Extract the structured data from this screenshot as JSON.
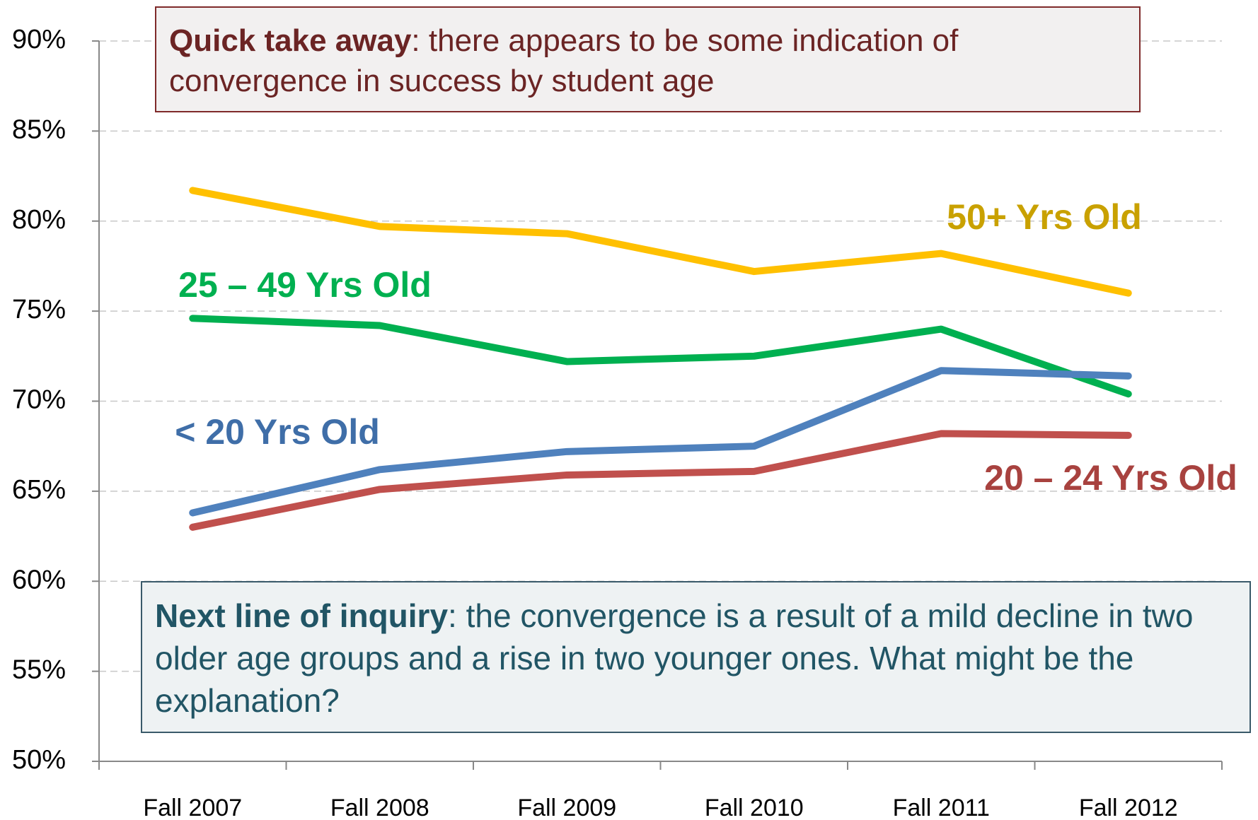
{
  "chart_data": {
    "type": "line",
    "categories": [
      "Fall 2007",
      "Fall 2008",
      "Fall 2009",
      "Fall 2010",
      "Fall 2011",
      "Fall 2012"
    ],
    "series": [
      {
        "name": "50+ Yrs Old",
        "color": "#ffc000",
        "label_color": "#c9a100",
        "values": [
          81.7,
          79.7,
          79.3,
          77.2,
          78.2,
          76.0
        ]
      },
      {
        "name": "25 – 49 Yrs Old",
        "color": "#00b050",
        "label_color": "#00b050",
        "values": [
          74.6,
          74.2,
          72.2,
          72.5,
          74.0,
          70.4
        ]
      },
      {
        "name": "< 20 Yrs Old",
        "color": "#4f81bd",
        "label_color": "#3f6ea8",
        "values": [
          63.8,
          66.2,
          67.2,
          67.5,
          71.7,
          71.4
        ]
      },
      {
        "name": "20 – 24 Yrs Old",
        "color": "#c0504d",
        "label_color": "#a8423f",
        "values": [
          63.0,
          65.1,
          65.9,
          66.1,
          68.2,
          68.1
        ]
      }
    ],
    "ylim": [
      50,
      90
    ],
    "yticks": [
      {
        "value": 50,
        "label": "50%"
      },
      {
        "value": 55,
        "label": "55%"
      },
      {
        "value": 60,
        "label": "60%"
      },
      {
        "value": 65,
        "label": "65%"
      },
      {
        "value": 70,
        "label": "70%"
      },
      {
        "value": 75,
        "label": "75%"
      },
      {
        "value": 80,
        "label": "80%"
      },
      {
        "value": 85,
        "label": "85%"
      },
      {
        "value": 90,
        "label": "90%"
      }
    ],
    "grid": true,
    "annotations": [
      {
        "bold": "Quick take away",
        "text": ": there appears to be some indication of convergence in success by student age"
      },
      {
        "bold": "Next line of inquiry",
        "text": ": the convergence is a result of a mild decline in two older age groups and a rise in two younger ones. What might be the explanation?"
      }
    ]
  }
}
